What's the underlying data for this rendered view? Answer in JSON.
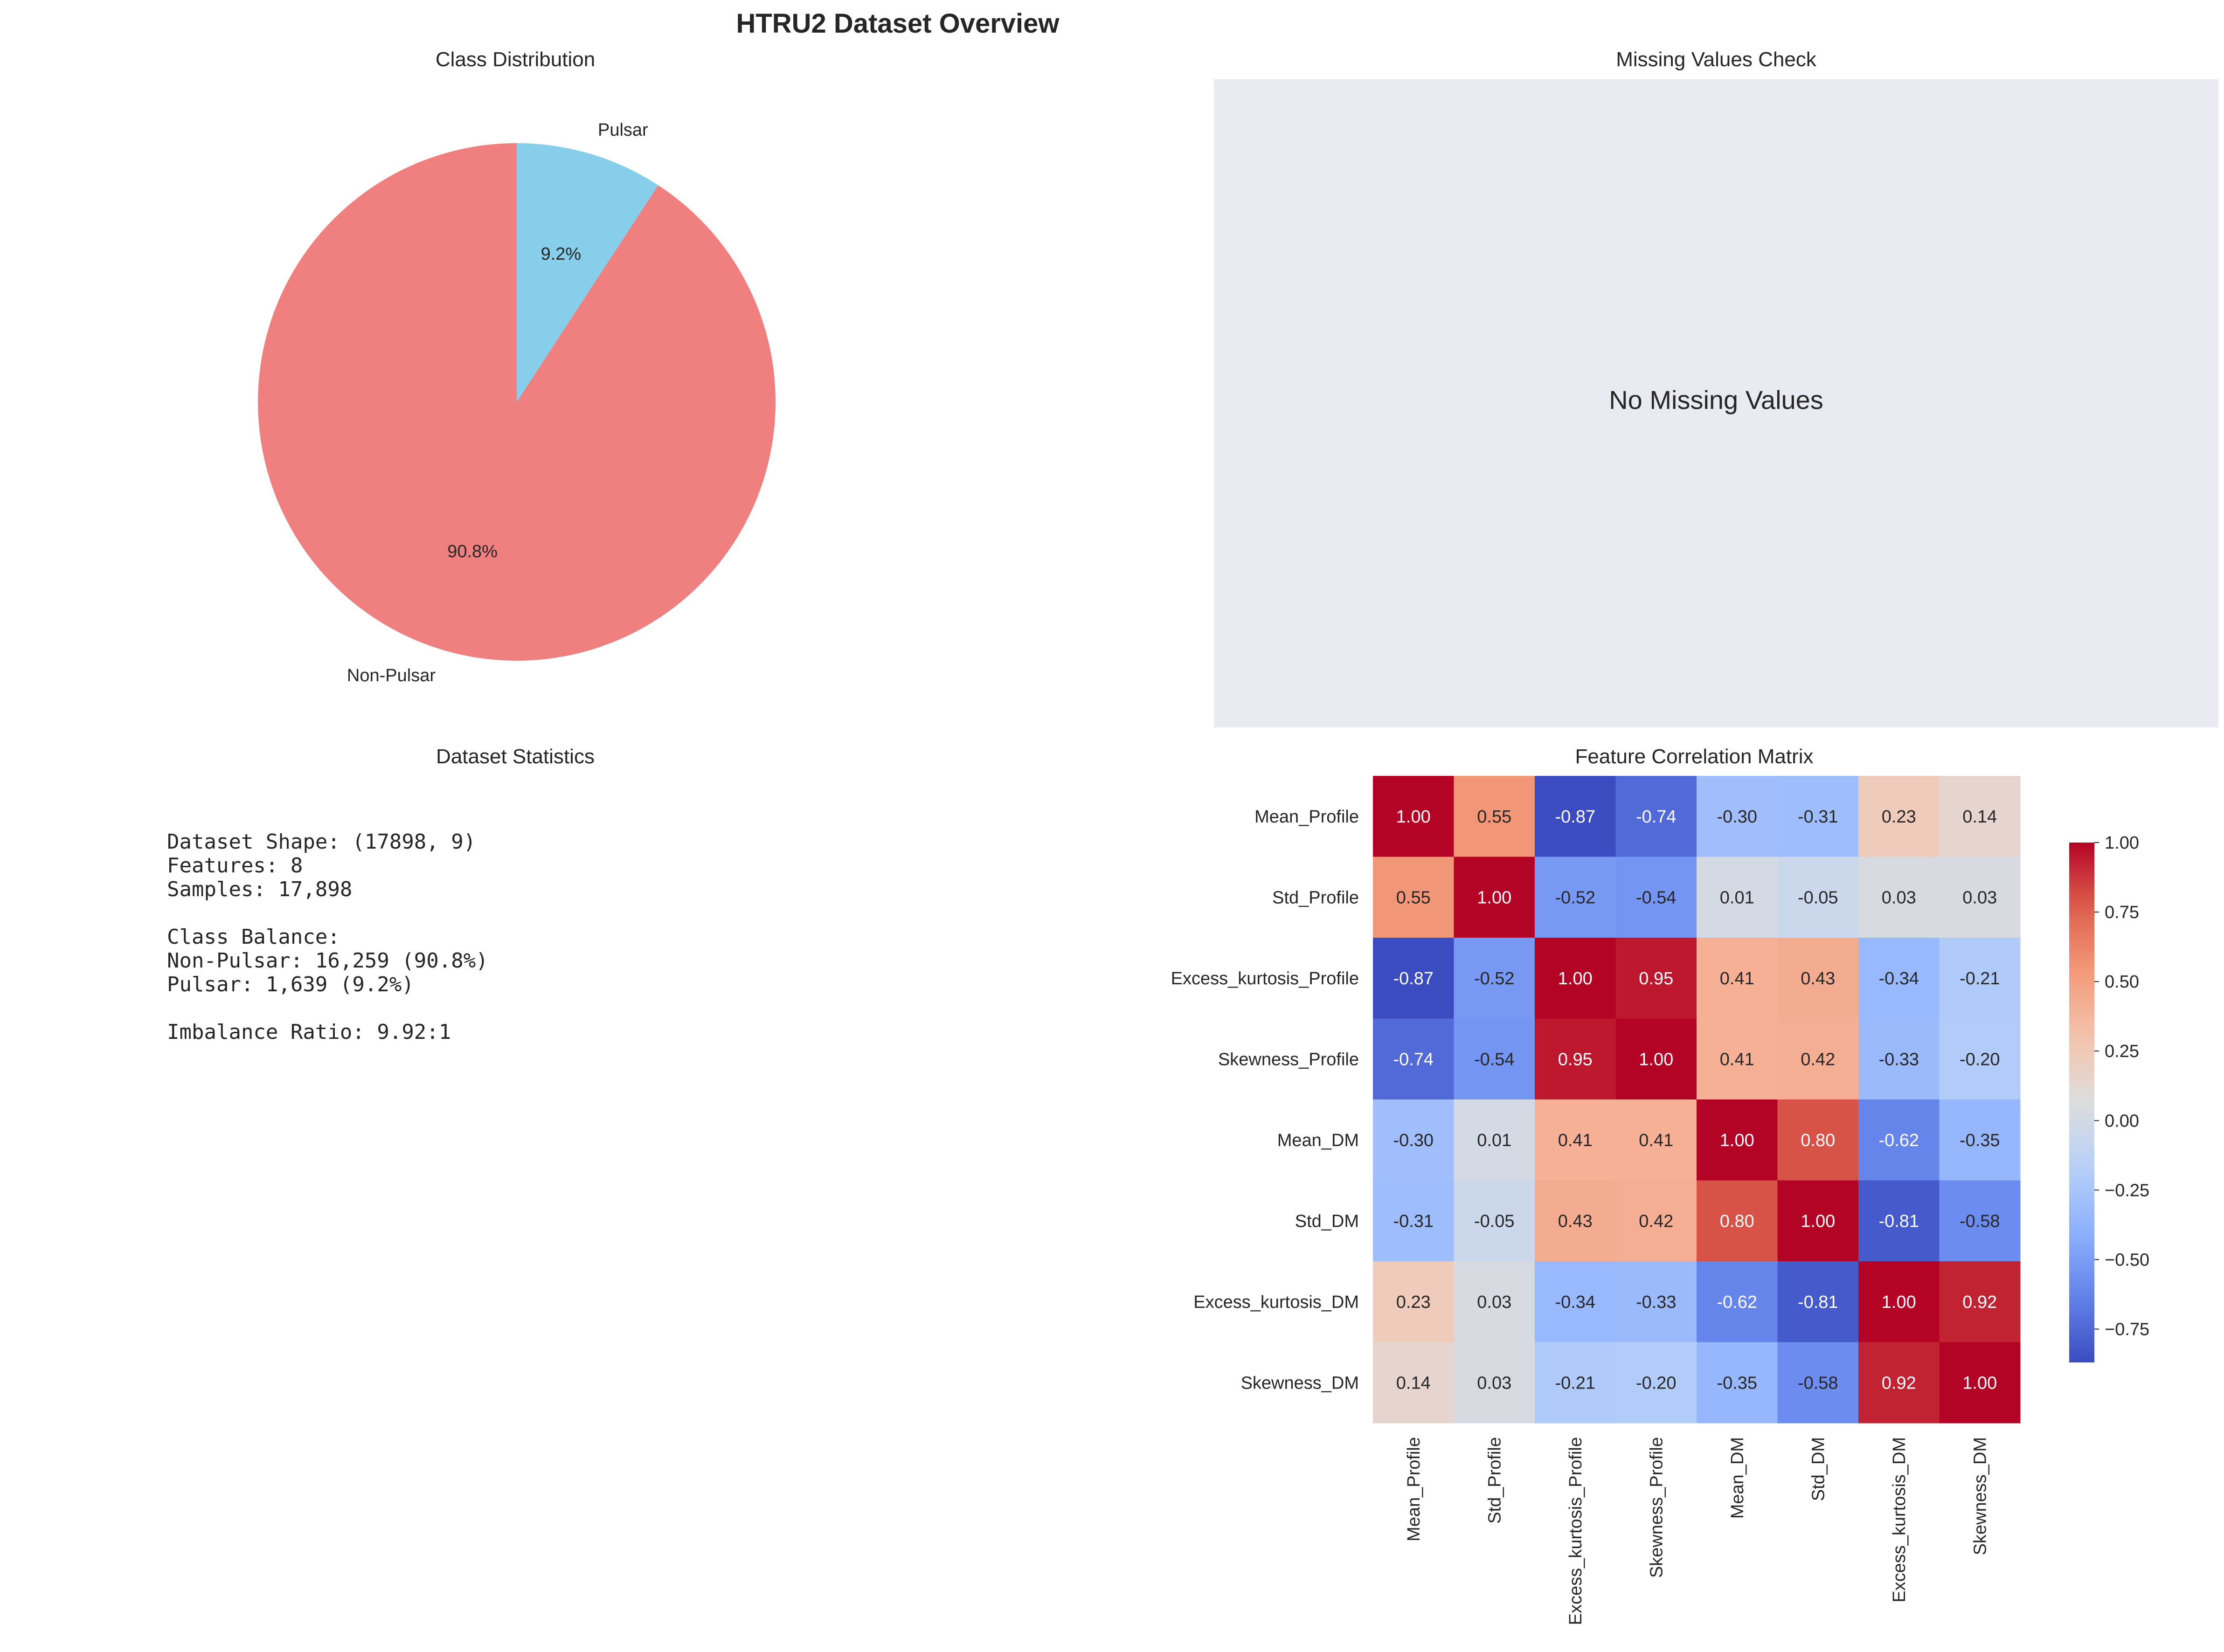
{
  "figure": {
    "title": "HTRU2 Dataset Overview"
  },
  "panels": {
    "class_distribution": {
      "title": "Class Distribution"
    },
    "missing_values": {
      "title": "Missing Values Check",
      "message": "No Missing Values",
      "background": "#eaeaf2"
    },
    "statistics": {
      "title": "Dataset Statistics",
      "lines": [
        "Dataset Shape: (17898, 9)",
        "Features: 8",
        "Samples: 17,898",
        "",
        "Class Balance:",
        "Non-Pulsar: 16,259 (90.8%)",
        "Pulsar: 1,639 (9.2%)",
        "",
        "Imbalance Ratio: 9.92:1"
      ]
    },
    "correlation": {
      "title": "Feature Correlation Matrix"
    }
  },
  "chart_data": [
    {
      "type": "pie",
      "title": "Class Distribution",
      "labels": [
        "Non-Pulsar",
        "Pulsar"
      ],
      "values": [
        90.8,
        9.2
      ],
      "pct_labels": [
        "90.8%",
        "9.2%"
      ],
      "colors": [
        "#f08080",
        "#87ceeb"
      ],
      "start_angle_deg": 90
    },
    {
      "type": "heatmap",
      "title": "Feature Correlation Matrix",
      "features": [
        "Mean_Profile",
        "Std_Profile",
        "Excess_kurtosis_Profile",
        "Skewness_Profile",
        "Mean_DM",
        "Std_DM",
        "Excess_kurtosis_DM",
        "Skewness_DM"
      ],
      "matrix": [
        [
          1.0,
          0.55,
          -0.87,
          -0.74,
          -0.3,
          -0.31,
          0.23,
          0.14
        ],
        [
          0.55,
          1.0,
          -0.52,
          -0.54,
          0.01,
          -0.05,
          0.03,
          0.03
        ],
        [
          -0.87,
          -0.52,
          1.0,
          0.95,
          0.41,
          0.43,
          -0.34,
          -0.21
        ],
        [
          -0.74,
          -0.54,
          0.95,
          1.0,
          0.41,
          0.42,
          -0.33,
          -0.2
        ],
        [
          -0.3,
          0.01,
          0.41,
          0.41,
          1.0,
          0.8,
          -0.62,
          -0.35
        ],
        [
          -0.31,
          -0.05,
          0.43,
          0.42,
          0.8,
          1.0,
          -0.81,
          -0.58
        ],
        [
          0.23,
          0.03,
          -0.34,
          -0.33,
          -0.62,
          -0.81,
          1.0,
          0.92
        ],
        [
          0.14,
          0.03,
          -0.21,
          -0.2,
          -0.35,
          -0.58,
          0.92,
          1.0
        ]
      ],
      "colormap": "coolwarm",
      "vmin": -0.87,
      "vmax": 1.0,
      "colorbar_ticks": [
        1.0,
        0.75,
        0.5,
        0.25,
        0.0,
        -0.25,
        -0.5,
        -0.75
      ],
      "colorbar_tick_labels": [
        "1.00",
        "0.75",
        "0.50",
        "0.25",
        "0.00",
        "−0.25",
        "−0.50",
        "−0.75"
      ]
    }
  ]
}
